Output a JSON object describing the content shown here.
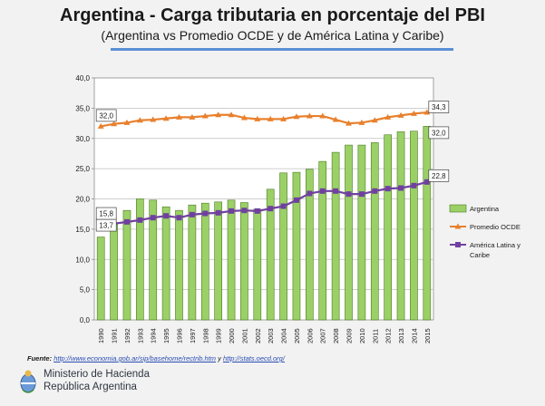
{
  "slide": {
    "title": "Argentina - Carga tributaria en porcentaje del PBI",
    "subtitle": "(Argentina vs Promedio OCDE y de América Latina y Caribe)"
  },
  "source": {
    "prefix": "Fuente:",
    "link1": "http://www.economia.gob.ar/sip/basehome/rectrib.htm",
    "conjunction": "y",
    "link2": "http://stats.oecd.org/"
  },
  "footer": {
    "ministry": "Ministerio de Hacienda",
    "country": "República Argentina"
  },
  "colors": {
    "argentina_bar": "#9bd066",
    "argentina_bar_border": "#4d7a25",
    "oecd_line": "#e8802d",
    "latam_line": "#7040a0",
    "title_rule": "#5a8fd6"
  },
  "chart_data": {
    "type": "bar",
    "title": "",
    "xlabel": "",
    "ylabel": "",
    "ylim": [
      0,
      40
    ],
    "yticks": [
      "0,0",
      "5,0",
      "10,0",
      "15,0",
      "20,0",
      "25,0",
      "30,0",
      "35,0",
      "40,0"
    ],
    "grid": true,
    "legend_position": "right",
    "categories": [
      "1990",
      "1991",
      "1992",
      "1993",
      "1994",
      "1995",
      "1996",
      "1997",
      "1998",
      "1999",
      "2000",
      "2001",
      "2002",
      "2003",
      "2004",
      "2005",
      "2006",
      "2007",
      "2008",
      "2009",
      "2010",
      "2011",
      "2012",
      "2013",
      "2014",
      "2015"
    ],
    "series": [
      {
        "name": "Argentina",
        "kind": "bar",
        "values": [
          13.7,
          16.0,
          18.1,
          20.0,
          19.8,
          18.7,
          18.1,
          19.0,
          19.3,
          19.5,
          19.8,
          19.4,
          18.3,
          21.6,
          24.3,
          24.4,
          24.9,
          26.2,
          27.7,
          28.9,
          28.9,
          29.3,
          30.6,
          31.1,
          31.2,
          32.0
        ]
      },
      {
        "name": "Promedio OCDE",
        "kind": "line",
        "values": [
          32.0,
          32.4,
          32.6,
          33.0,
          33.1,
          33.3,
          33.5,
          33.5,
          33.7,
          33.9,
          33.9,
          33.4,
          33.2,
          33.2,
          33.2,
          33.6,
          33.7,
          33.7,
          33.1,
          32.5,
          32.6,
          33.0,
          33.5,
          33.8,
          34.1,
          34.3
        ]
      },
      {
        "name": "América Latina y Caribe",
        "kind": "line",
        "values": [
          15.8,
          15.9,
          16.2,
          16.5,
          16.9,
          17.2,
          16.9,
          17.4,
          17.6,
          17.7,
          18.0,
          18.1,
          18.0,
          18.4,
          18.8,
          19.8,
          20.9,
          21.3,
          21.3,
          20.8,
          20.8,
          21.3,
          21.7,
          21.8,
          22.2,
          22.8
        ]
      }
    ],
    "data_labels": [
      {
        "series": 0,
        "index": 0,
        "text": "13,7"
      },
      {
        "series": 1,
        "index": 0,
        "text": "32,0"
      },
      {
        "series": 2,
        "index": 0,
        "text": "15,8"
      },
      {
        "series": 1,
        "index": 25,
        "text": "34,3"
      },
      {
        "series": 0,
        "index": 25,
        "text": "32,0"
      },
      {
        "series": 2,
        "index": 25,
        "text": "22,8"
      }
    ],
    "legend": [
      {
        "series": 0,
        "label": "Argentina"
      },
      {
        "series": 1,
        "label": "Promedio OCDE"
      },
      {
        "series": 2,
        "label": [
          "América Latina y",
          "Caribe"
        ]
      }
    ]
  }
}
